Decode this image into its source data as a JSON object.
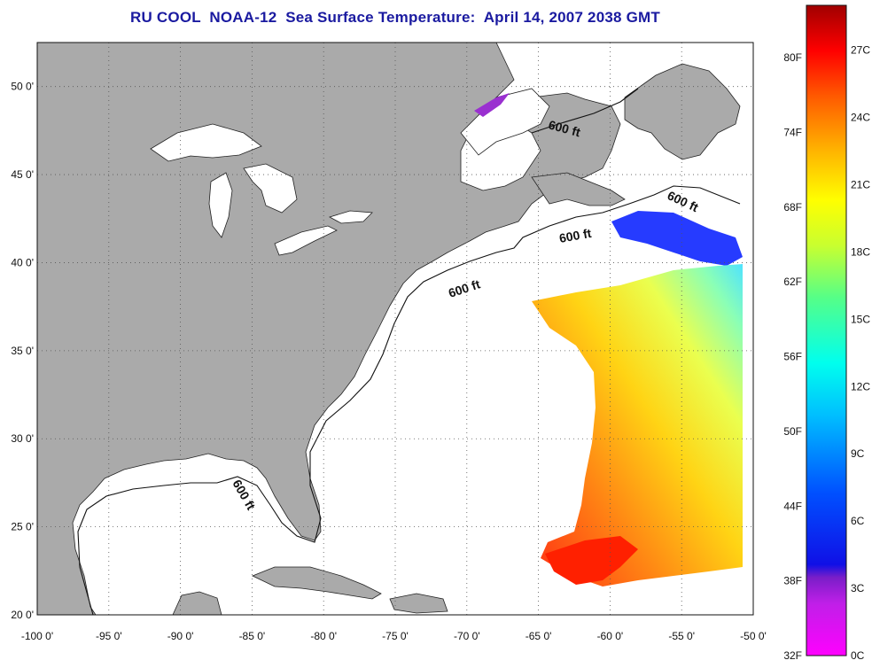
{
  "title": "RU COOL  NOAA-12  Sea Surface Temperature:  April 14, 2007 2038 GMT",
  "map": {
    "lon_range": [
      -100,
      -50
    ],
    "lat_range": [
      20,
      52.5
    ],
    "lon_ticks": [
      "-100 0'",
      "-95 0'",
      "-90 0'",
      "-85 0'",
      "-80 0'",
      "-75 0'",
      "-70 0'",
      "-65 0'",
      "-60 0'",
      "-55 0'",
      "-50 0'"
    ],
    "lat_ticks": [
      "20 0'",
      "25 0'",
      "30 0'",
      "35 0'",
      "40 0'",
      "45 0'",
      "50 0'"
    ],
    "grid": "dotted",
    "contour_label": "600 ft",
    "colors": {
      "land": "#aaaaaa",
      "water": "#ffffff",
      "grid": "#555555"
    }
  },
  "colorbar": {
    "f_labels": [
      "32F",
      "38F",
      "44F",
      "50F",
      "56F",
      "62F",
      "68F",
      "74F",
      "80F"
    ],
    "c_labels": [
      "0C",
      "3C",
      "6C",
      "9C",
      "12C",
      "15C",
      "18C",
      "21C",
      "24C",
      "27C"
    ],
    "range_c": [
      0,
      29
    ],
    "colors_bottom_to_top": [
      "#ff00ff",
      "#8a2be2",
      "#0000ff",
      "#00aaff",
      "#00ffff",
      "#66ff99",
      "#ccff33",
      "#ffff00",
      "#ffaa00",
      "#ff5500",
      "#ff0000",
      "#aa0000"
    ]
  }
}
